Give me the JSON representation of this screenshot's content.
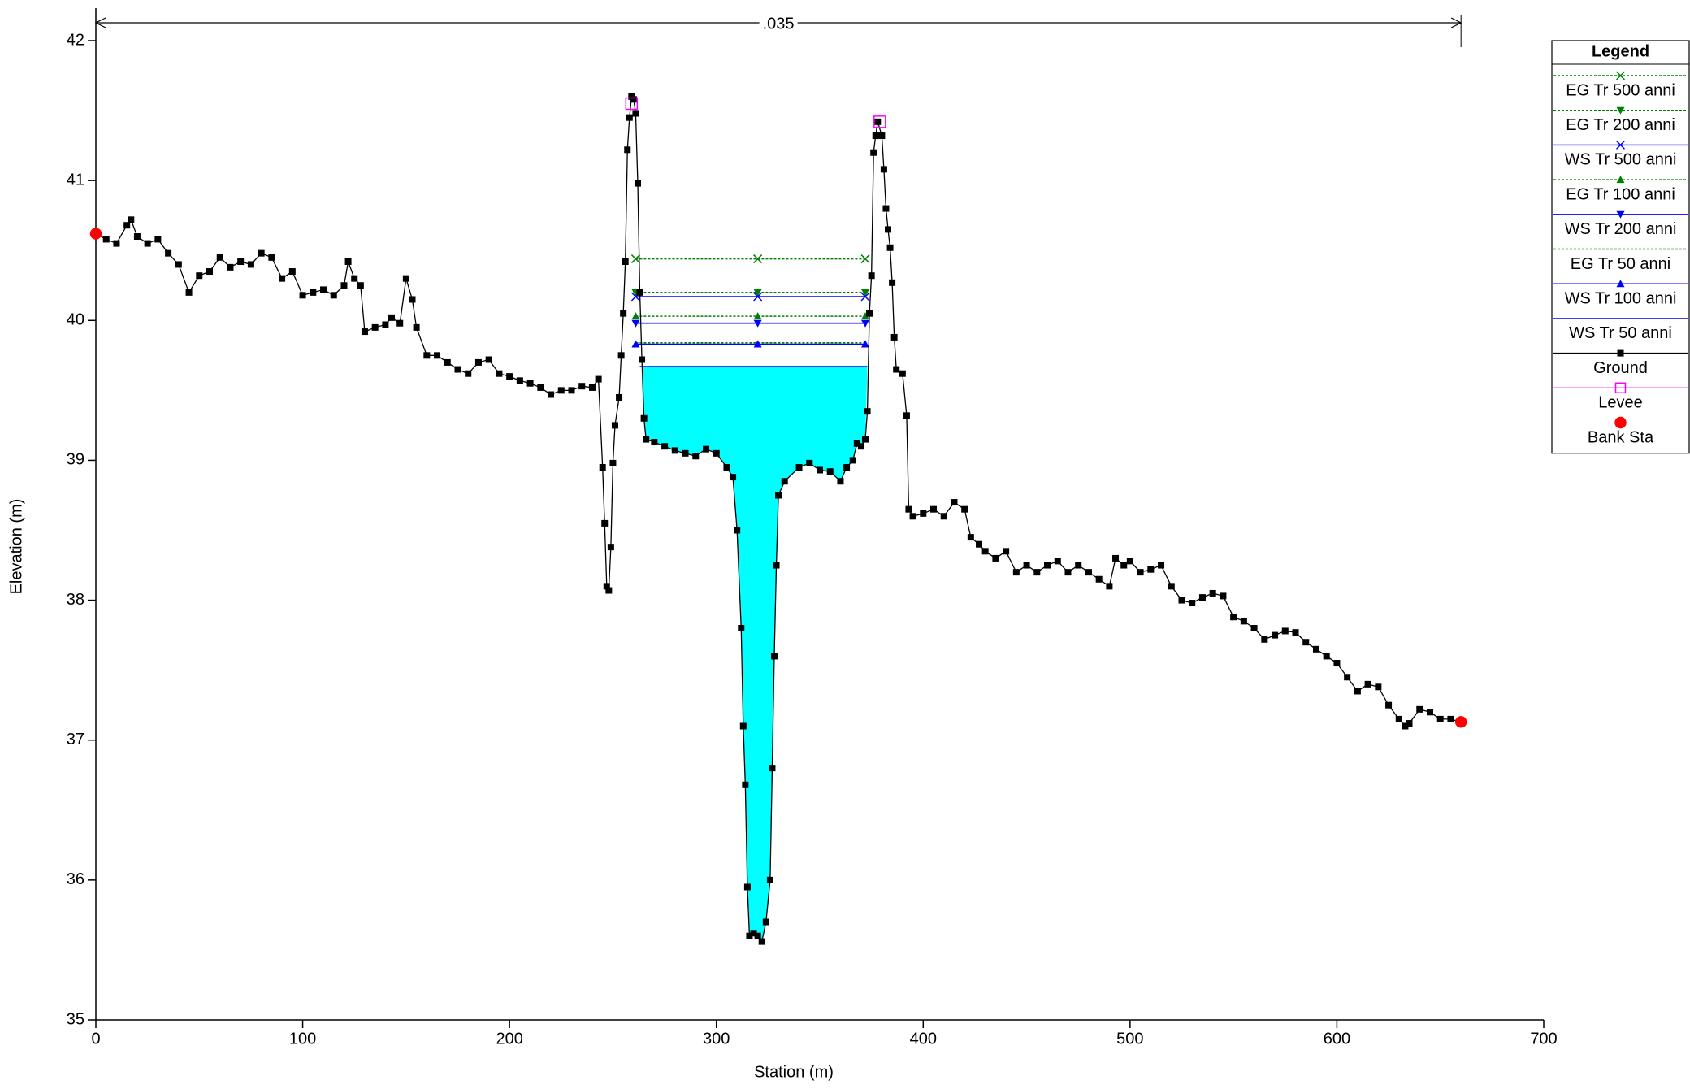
{
  "chart_data": {
    "type": "line",
    "xlabel": "Station (m)",
    "ylabel": "Elevation (m)",
    "xlim": [
      0,
      700
    ],
    "ylim": [
      35,
      42
    ],
    "xticks": [
      0,
      100,
      200,
      300,
      400,
      500,
      600,
      700
    ],
    "yticks": [
      35,
      36,
      37,
      38,
      39,
      40,
      41,
      42
    ],
    "mannings_n": {
      "label": ".035",
      "x": [
        0,
        660
      ]
    },
    "legend_title": "Legend",
    "legend_position": "upper right",
    "fill_series": "WS Tr 50 anni",
    "fill_color": "#00ffff",
    "series": [
      {
        "name": "EG Tr 500 anni",
        "color": "#008000",
        "dash": true,
        "marker": "x",
        "x": [
          261,
          320,
          372
        ],
        "values": [
          40.44,
          40.44,
          40.44
        ]
      },
      {
        "name": "EG Tr 200 anni",
        "color": "#008000",
        "dash": true,
        "marker": "tri-down",
        "x": [
          261,
          320,
          372
        ],
        "values": [
          40.2,
          40.2,
          40.2
        ]
      },
      {
        "name": "WS Tr 500 anni",
        "color": "#0000ff",
        "dash": false,
        "marker": "x",
        "x": [
          261,
          320,
          372
        ],
        "values": [
          40.17,
          40.17,
          40.17
        ]
      },
      {
        "name": "EG Tr 100 anni",
        "color": "#008000",
        "dash": true,
        "marker": "tri-up",
        "x": [
          261,
          320,
          372
        ],
        "values": [
          40.03,
          40.03,
          40.03
        ]
      },
      {
        "name": "WS Tr 200 anni",
        "color": "#0000ff",
        "dash": false,
        "marker": "tri-down",
        "x": [
          261,
          320,
          372
        ],
        "values": [
          39.98,
          39.98,
          39.98
        ]
      },
      {
        "name": "EG Tr 50 anni",
        "color": "#008000",
        "dash": true,
        "marker": "none",
        "x": [
          261,
          320,
          372
        ],
        "values": [
          39.84,
          39.84,
          39.84
        ]
      },
      {
        "name": "WS Tr 100 anni",
        "color": "#0000ff",
        "dash": false,
        "marker": "tri-up",
        "x": [
          261,
          320,
          372
        ],
        "values": [
          39.83,
          39.83,
          39.83
        ]
      },
      {
        "name": "WS Tr 50 anni",
        "color": "#0000ff",
        "dash": false,
        "marker": "none",
        "x": [
          263,
          373
        ],
        "values": [
          39.67,
          39.67
        ]
      },
      {
        "name": "Ground",
        "color": "#000000",
        "dash": false,
        "marker": "square",
        "x": [
          0,
          5,
          10,
          15,
          17,
          20,
          25,
          30,
          35,
          40,
          45,
          50,
          55,
          60,
          65,
          70,
          75,
          80,
          85,
          90,
          95,
          100,
          105,
          110,
          115,
          120,
          122,
          125,
          128,
          130,
          135,
          140,
          143,
          147,
          150,
          153,
          155,
          160,
          165,
          170,
          175,
          180,
          185,
          190,
          195,
          200,
          205,
          210,
          215,
          220,
          225,
          230,
          235,
          240,
          243,
          245,
          246,
          247,
          248,
          249,
          250,
          251,
          253,
          254,
          255,
          256,
          257,
          258,
          259,
          260,
          261,
          262,
          263,
          264,
          265,
          266,
          270,
          275,
          280,
          285,
          290,
          295,
          300,
          305,
          308,
          310,
          312,
          313,
          314,
          315,
          316,
          318,
          320,
          322,
          324,
          326,
          327,
          328,
          329,
          330,
          333,
          340,
          345,
          350,
          355,
          360,
          363,
          366,
          368,
          370,
          372,
          373,
          374,
          375,
          376,
          377,
          378,
          380,
          381,
          382,
          383,
          384,
          385,
          386,
          387,
          390,
          392,
          393,
          395,
          400,
          405,
          410,
          415,
          420,
          423,
          427,
          430,
          435,
          440,
          445,
          450,
          455,
          460,
          465,
          470,
          475,
          480,
          485,
          490,
          493,
          497,
          500,
          505,
          510,
          515,
          520,
          525,
          530,
          535,
          540,
          545,
          550,
          555,
          560,
          565,
          570,
          575,
          580,
          585,
          590,
          595,
          600,
          605,
          610,
          615,
          620,
          625,
          630,
          633,
          635,
          640,
          645,
          650,
          655,
          660
        ],
        "values": [
          40.62,
          40.58,
          40.55,
          40.68,
          40.72,
          40.6,
          40.55,
          40.58,
          40.48,
          40.4,
          40.2,
          40.32,
          40.35,
          40.45,
          40.38,
          40.42,
          40.4,
          40.48,
          40.45,
          40.3,
          40.35,
          40.18,
          40.2,
          40.22,
          40.18,
          40.25,
          40.42,
          40.3,
          40.25,
          39.92,
          39.95,
          39.97,
          40.02,
          39.98,
          40.3,
          40.15,
          39.95,
          39.75,
          39.75,
          39.7,
          39.65,
          39.62,
          39.7,
          39.72,
          39.62,
          39.6,
          39.57,
          39.55,
          39.52,
          39.47,
          39.5,
          39.5,
          39.53,
          39.52,
          39.58,
          38.95,
          38.55,
          38.1,
          38.07,
          38.38,
          38.98,
          39.25,
          39.45,
          39.75,
          40.05,
          40.42,
          41.22,
          41.45,
          41.6,
          41.58,
          41.48,
          40.98,
          40.2,
          39.72,
          39.3,
          39.15,
          39.13,
          39.1,
          39.07,
          39.05,
          39.03,
          39.08,
          39.05,
          38.95,
          38.88,
          38.5,
          37.8,
          37.1,
          36.68,
          35.95,
          35.6,
          35.62,
          35.6,
          35.56,
          35.7,
          36.0,
          36.8,
          37.6,
          38.25,
          38.75,
          38.85,
          38.95,
          38.98,
          38.93,
          38.92,
          38.85,
          38.95,
          39.0,
          39.12,
          39.1,
          39.15,
          39.35,
          40.05,
          40.32,
          41.2,
          41.32,
          41.42,
          41.32,
          41.08,
          40.8,
          40.65,
          40.52,
          40.27,
          39.88,
          39.65,
          39.62,
          39.32,
          38.65,
          38.6,
          38.62,
          38.65,
          38.6,
          38.7,
          38.65,
          38.45,
          38.4,
          38.35,
          38.3,
          38.35,
          38.2,
          38.25,
          38.2,
          38.25,
          38.28,
          38.2,
          38.25,
          38.2,
          38.15,
          38.1,
          38.3,
          38.25,
          38.28,
          38.2,
          38.22,
          38.25,
          38.1,
          38.0,
          37.98,
          38.02,
          38.05,
          38.03,
          37.88,
          37.85,
          37.8,
          37.72,
          37.75,
          37.78,
          37.77,
          37.7,
          37.65,
          37.6,
          37.55,
          37.45,
          37.35,
          37.4,
          37.38,
          37.25,
          37.15,
          37.1,
          37.12,
          37.22,
          37.2,
          37.15,
          37.15,
          37.13
        ]
      },
      {
        "name": "Levee",
        "color": "#ff00ff",
        "dash": false,
        "marker": "open-square",
        "line": false,
        "x": [
          259,
          379
        ],
        "values": [
          41.55,
          41.42
        ]
      },
      {
        "name": "Bank Sta",
        "color": "#ff0000",
        "dash": false,
        "marker": "circle",
        "line": false,
        "x": [
          0,
          660
        ],
        "values": [
          40.62,
          37.13
        ]
      }
    ]
  }
}
